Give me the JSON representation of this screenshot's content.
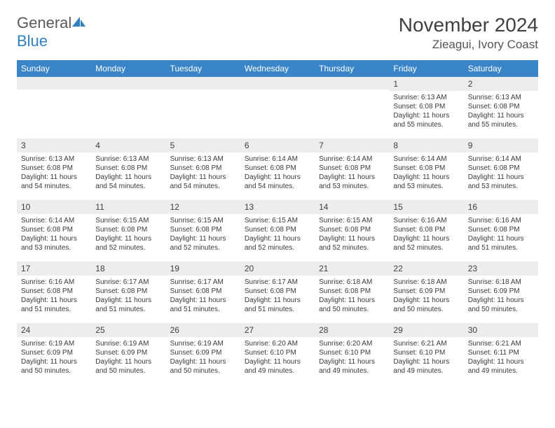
{
  "logo": {
    "word1": "General",
    "word2": "Blue"
  },
  "title": "November 2024",
  "location": "Zieagui, Ivory Coast",
  "colors": {
    "headerBlue": "#3a85c7",
    "lightGray": "#ededed",
    "textGray": "#404040",
    "logoGray": "#5a5a5a",
    "logoBlue": "#2f7fc1"
  },
  "dayNames": [
    "Sunday",
    "Monday",
    "Tuesday",
    "Wednesday",
    "Thursday",
    "Friday",
    "Saturday"
  ],
  "weeks": [
    [
      {
        "blank": true
      },
      {
        "blank": true
      },
      {
        "blank": true
      },
      {
        "blank": true
      },
      {
        "blank": true
      },
      {
        "n": "1",
        "sunrise": "6:13 AM",
        "sunset": "6:08 PM",
        "daylight": "11 hours and 55 minutes."
      },
      {
        "n": "2",
        "sunrise": "6:13 AM",
        "sunset": "6:08 PM",
        "daylight": "11 hours and 55 minutes."
      }
    ],
    [
      {
        "n": "3",
        "sunrise": "6:13 AM",
        "sunset": "6:08 PM",
        "daylight": "11 hours and 54 minutes."
      },
      {
        "n": "4",
        "sunrise": "6:13 AM",
        "sunset": "6:08 PM",
        "daylight": "11 hours and 54 minutes."
      },
      {
        "n": "5",
        "sunrise": "6:13 AM",
        "sunset": "6:08 PM",
        "daylight": "11 hours and 54 minutes."
      },
      {
        "n": "6",
        "sunrise": "6:14 AM",
        "sunset": "6:08 PM",
        "daylight": "11 hours and 54 minutes."
      },
      {
        "n": "7",
        "sunrise": "6:14 AM",
        "sunset": "6:08 PM",
        "daylight": "11 hours and 53 minutes."
      },
      {
        "n": "8",
        "sunrise": "6:14 AM",
        "sunset": "6:08 PM",
        "daylight": "11 hours and 53 minutes."
      },
      {
        "n": "9",
        "sunrise": "6:14 AM",
        "sunset": "6:08 PM",
        "daylight": "11 hours and 53 minutes."
      }
    ],
    [
      {
        "n": "10",
        "sunrise": "6:14 AM",
        "sunset": "6:08 PM",
        "daylight": "11 hours and 53 minutes."
      },
      {
        "n": "11",
        "sunrise": "6:15 AM",
        "sunset": "6:08 PM",
        "daylight": "11 hours and 52 minutes."
      },
      {
        "n": "12",
        "sunrise": "6:15 AM",
        "sunset": "6:08 PM",
        "daylight": "11 hours and 52 minutes."
      },
      {
        "n": "13",
        "sunrise": "6:15 AM",
        "sunset": "6:08 PM",
        "daylight": "11 hours and 52 minutes."
      },
      {
        "n": "14",
        "sunrise": "6:15 AM",
        "sunset": "6:08 PM",
        "daylight": "11 hours and 52 minutes."
      },
      {
        "n": "15",
        "sunrise": "6:16 AM",
        "sunset": "6:08 PM",
        "daylight": "11 hours and 52 minutes."
      },
      {
        "n": "16",
        "sunrise": "6:16 AM",
        "sunset": "6:08 PM",
        "daylight": "11 hours and 51 minutes."
      }
    ],
    [
      {
        "n": "17",
        "sunrise": "6:16 AM",
        "sunset": "6:08 PM",
        "daylight": "11 hours and 51 minutes."
      },
      {
        "n": "18",
        "sunrise": "6:17 AM",
        "sunset": "6:08 PM",
        "daylight": "11 hours and 51 minutes."
      },
      {
        "n": "19",
        "sunrise": "6:17 AM",
        "sunset": "6:08 PM",
        "daylight": "11 hours and 51 minutes."
      },
      {
        "n": "20",
        "sunrise": "6:17 AM",
        "sunset": "6:08 PM",
        "daylight": "11 hours and 51 minutes."
      },
      {
        "n": "21",
        "sunrise": "6:18 AM",
        "sunset": "6:08 PM",
        "daylight": "11 hours and 50 minutes."
      },
      {
        "n": "22",
        "sunrise": "6:18 AM",
        "sunset": "6:09 PM",
        "daylight": "11 hours and 50 minutes."
      },
      {
        "n": "23",
        "sunrise": "6:18 AM",
        "sunset": "6:09 PM",
        "daylight": "11 hours and 50 minutes."
      }
    ],
    [
      {
        "n": "24",
        "sunrise": "6:19 AM",
        "sunset": "6:09 PM",
        "daylight": "11 hours and 50 minutes."
      },
      {
        "n": "25",
        "sunrise": "6:19 AM",
        "sunset": "6:09 PM",
        "daylight": "11 hours and 50 minutes."
      },
      {
        "n": "26",
        "sunrise": "6:19 AM",
        "sunset": "6:09 PM",
        "daylight": "11 hours and 50 minutes."
      },
      {
        "n": "27",
        "sunrise": "6:20 AM",
        "sunset": "6:10 PM",
        "daylight": "11 hours and 49 minutes."
      },
      {
        "n": "28",
        "sunrise": "6:20 AM",
        "sunset": "6:10 PM",
        "daylight": "11 hours and 49 minutes."
      },
      {
        "n": "29",
        "sunrise": "6:21 AM",
        "sunset": "6:10 PM",
        "daylight": "11 hours and 49 minutes."
      },
      {
        "n": "30",
        "sunrise": "6:21 AM",
        "sunset": "6:11 PM",
        "daylight": "11 hours and 49 minutes."
      }
    ]
  ]
}
